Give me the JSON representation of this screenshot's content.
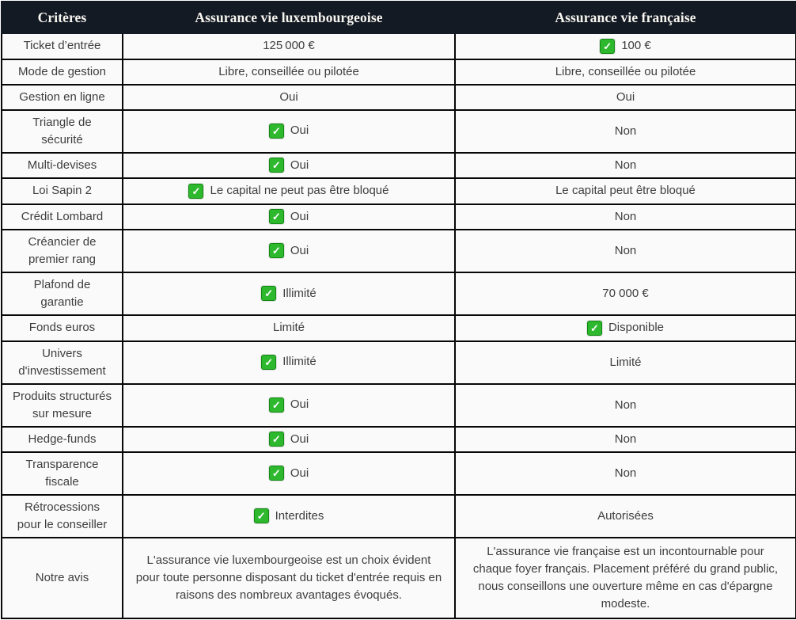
{
  "table": {
    "columns": [
      "Critères",
      "Assurance vie luxembourgeoise",
      "Assurance vie française"
    ],
    "check_icon_name": "green-check-icon",
    "check_glyph": "✓",
    "colors": {
      "header_bg": "#141a23",
      "header_text": "#f8f6f1",
      "cell_bg": "#fafafa",
      "cell_text": "#3e3e3e",
      "border": "#070707",
      "check_green": "#2eb82e",
      "check_green_border": "#128a12"
    },
    "rows": [
      {
        "label": "Ticket d’entrée",
        "lux": {
          "check": false,
          "text": "125 000 €"
        },
        "fr": {
          "check": true,
          "text": "100 €"
        }
      },
      {
        "label": "Mode de gestion",
        "lux": {
          "check": false,
          "text": "Libre, conseillée ou pilotée"
        },
        "fr": {
          "check": false,
          "text": "Libre, conseillée ou pilotée"
        }
      },
      {
        "label": "Gestion en ligne",
        "lux": {
          "check": false,
          "text": "Oui"
        },
        "fr": {
          "check": false,
          "text": "Oui"
        }
      },
      {
        "label": "Triangle de sécurité",
        "lux": {
          "check": true,
          "text": "Oui"
        },
        "fr": {
          "check": false,
          "text": "Non"
        }
      },
      {
        "label": "Multi-devises",
        "lux": {
          "check": true,
          "text": "Oui"
        },
        "fr": {
          "check": false,
          "text": "Non"
        }
      },
      {
        "label": "Loi Sapin 2",
        "lux": {
          "check": true,
          "text": "Le capital ne peut pas être bloqué"
        },
        "fr": {
          "check": false,
          "text": "Le capital peut être bloqué"
        }
      },
      {
        "label": "Crédit Lombard",
        "lux": {
          "check": true,
          "text": "Oui"
        },
        "fr": {
          "check": false,
          "text": "Non"
        }
      },
      {
        "label": "Créancier de premier rang",
        "lux": {
          "check": true,
          "text": "Oui"
        },
        "fr": {
          "check": false,
          "text": "Non"
        }
      },
      {
        "label": "Plafond de garantie",
        "lux": {
          "check": true,
          "text": "Illimité"
        },
        "fr": {
          "check": false,
          "text": "70 000 €"
        }
      },
      {
        "label": "Fonds euros",
        "lux": {
          "check": false,
          "text": "Limité"
        },
        "fr": {
          "check": true,
          "text": "Disponible"
        }
      },
      {
        "label": "Univers d'investissement",
        "lux": {
          "check": true,
          "text": "Illimité"
        },
        "fr": {
          "check": false,
          "text": "Limité"
        }
      },
      {
        "label": "Produits structurés sur mesure",
        "lux": {
          "check": true,
          "text": "Oui"
        },
        "fr": {
          "check": false,
          "text": "Non"
        }
      },
      {
        "label": "Hedge-funds",
        "lux": {
          "check": true,
          "text": "Oui"
        },
        "fr": {
          "check": false,
          "text": "Non"
        }
      },
      {
        "label": "Transparence fiscale",
        "lux": {
          "check": true,
          "text": "Oui"
        },
        "fr": {
          "check": false,
          "text": "Non"
        }
      },
      {
        "label": "Rétrocessions pour le conseiller",
        "lux": {
          "check": true,
          "text": "Interdites"
        },
        "fr": {
          "check": false,
          "text": "Autorisées"
        }
      },
      {
        "label": "Notre avis",
        "avis": true,
        "lux": {
          "check": false,
          "text": "L'assurance vie luxembourgeoise est un choix évident pour toute personne disposant du ticket d'entrée requis en raisons des nombreux avantages évoqués."
        },
        "fr": {
          "check": false,
          "text": "L'assurance vie française est un incontournable pour chaque foyer français. Placement préféré du grand public, nous conseillons une ouverture même en cas d'épargne modeste."
        }
      }
    ]
  }
}
